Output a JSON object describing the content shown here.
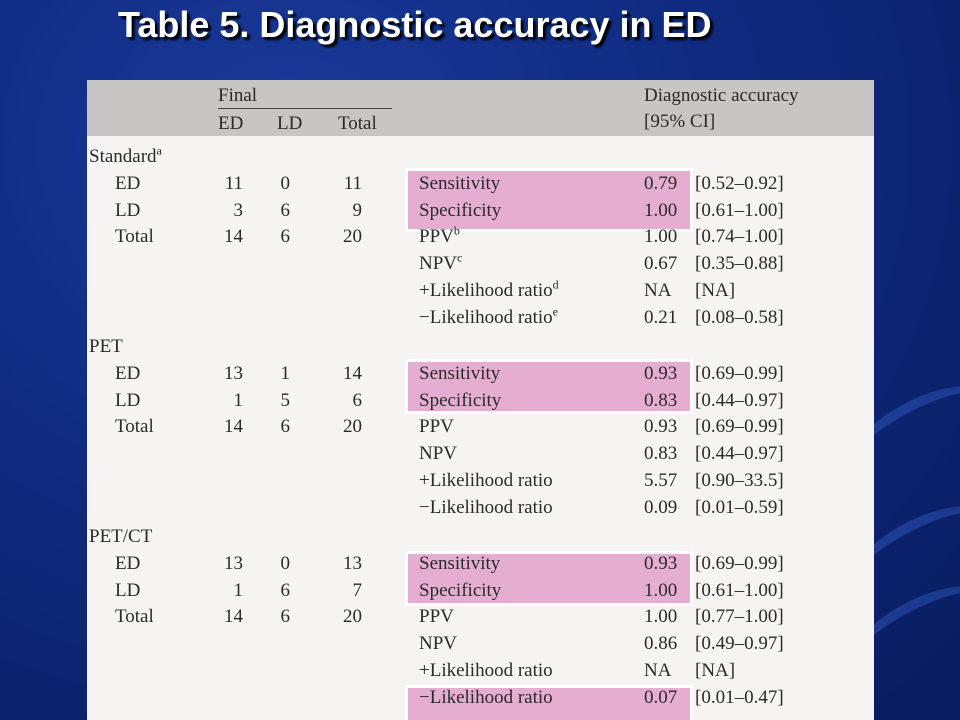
{
  "title": "Table 5. Diagnostic accuracy in ED",
  "colors": {
    "background": "#0f2a80",
    "header_band": "#c8c6c4",
    "highlight": "#e5aed1",
    "panel": "#f5f4f2"
  },
  "header": {
    "final": "Final",
    "ed": "ED",
    "ld": "LD",
    "total": "Total",
    "accuracy": "Diagnostic accuracy",
    "ci": "[95% CI]"
  },
  "sections": [
    {
      "name": "Standard",
      "sup": "a",
      "rows": [
        {
          "label": "ED",
          "ed": "11",
          "ld": "0",
          "total": "11"
        },
        {
          "label": "LD",
          "ed": "3",
          "ld": "6",
          "total": "9"
        },
        {
          "label": "Total",
          "ed": "14",
          "ld": "6",
          "total": "20"
        }
      ],
      "metrics": [
        {
          "label": "Sensitivity",
          "sup": "",
          "value": "0.79",
          "ci": "[0.52–0.92]"
        },
        {
          "label": "Specificity",
          "sup": "",
          "value": "1.00",
          "ci": "[0.61–1.00]"
        },
        {
          "label": "PPV",
          "sup": "b",
          "value": "1.00",
          "ci": "[0.74–1.00]"
        },
        {
          "label": "NPV",
          "sup": "c",
          "value": "0.67",
          "ci": "[0.35–0.88]"
        },
        {
          "label": "+Likelihood ratio",
          "sup": "d",
          "value": "NA",
          "ci": "[NA]"
        },
        {
          "label": "−Likelihood ratio",
          "sup": "e",
          "value": "0.21",
          "ci": "[0.08–0.58]"
        }
      ]
    },
    {
      "name": "PET",
      "sup": "",
      "rows": [
        {
          "label": "ED",
          "ed": "13",
          "ld": "1",
          "total": "14"
        },
        {
          "label": "LD",
          "ed": "1",
          "ld": "5",
          "total": "6"
        },
        {
          "label": "Total",
          "ed": "14",
          "ld": "6",
          "total": "20"
        }
      ],
      "metrics": [
        {
          "label": "Sensitivity",
          "sup": "",
          "value": "0.93",
          "ci": "[0.69–0.99]"
        },
        {
          "label": "Specificity",
          "sup": "",
          "value": "0.83",
          "ci": "[0.44–0.97]"
        },
        {
          "label": "PPV",
          "sup": "",
          "value": "0.93",
          "ci": "[0.69–0.99]"
        },
        {
          "label": "NPV",
          "sup": "",
          "value": "0.83",
          "ci": "[0.44–0.97]"
        },
        {
          "label": "+Likelihood ratio",
          "sup": "",
          "value": "5.57",
          "ci": "[0.90–33.5]"
        },
        {
          "label": "−Likelihood ratio",
          "sup": "",
          "value": "0.09",
          "ci": "[0.01–0.59]"
        }
      ]
    },
    {
      "name": "PET/CT",
      "sup": "",
      "rows": [
        {
          "label": "ED",
          "ed": "13",
          "ld": "0",
          "total": "13"
        },
        {
          "label": "LD",
          "ed": "1",
          "ld": "6",
          "total": "7"
        },
        {
          "label": "Total",
          "ed": "14",
          "ld": "6",
          "total": "20"
        }
      ],
      "metrics": [
        {
          "label": "Sensitivity",
          "sup": "",
          "value": "0.93",
          "ci": "[0.69–0.99]"
        },
        {
          "label": "Specificity",
          "sup": "",
          "value": "1.00",
          "ci": "[0.61–1.00]"
        },
        {
          "label": "PPV",
          "sup": "",
          "value": "1.00",
          "ci": "[0.77–1.00]"
        },
        {
          "label": "NPV",
          "sup": "",
          "value": "0.86",
          "ci": "[0.49–0.97]"
        },
        {
          "label": "+Likelihood ratio",
          "sup": "",
          "value": "NA",
          "ci": "[NA]"
        },
        {
          "label": "−Likelihood ratio",
          "sup": "",
          "value": "0.07",
          "ci": "[0.01–0.47]"
        }
      ]
    }
  ]
}
